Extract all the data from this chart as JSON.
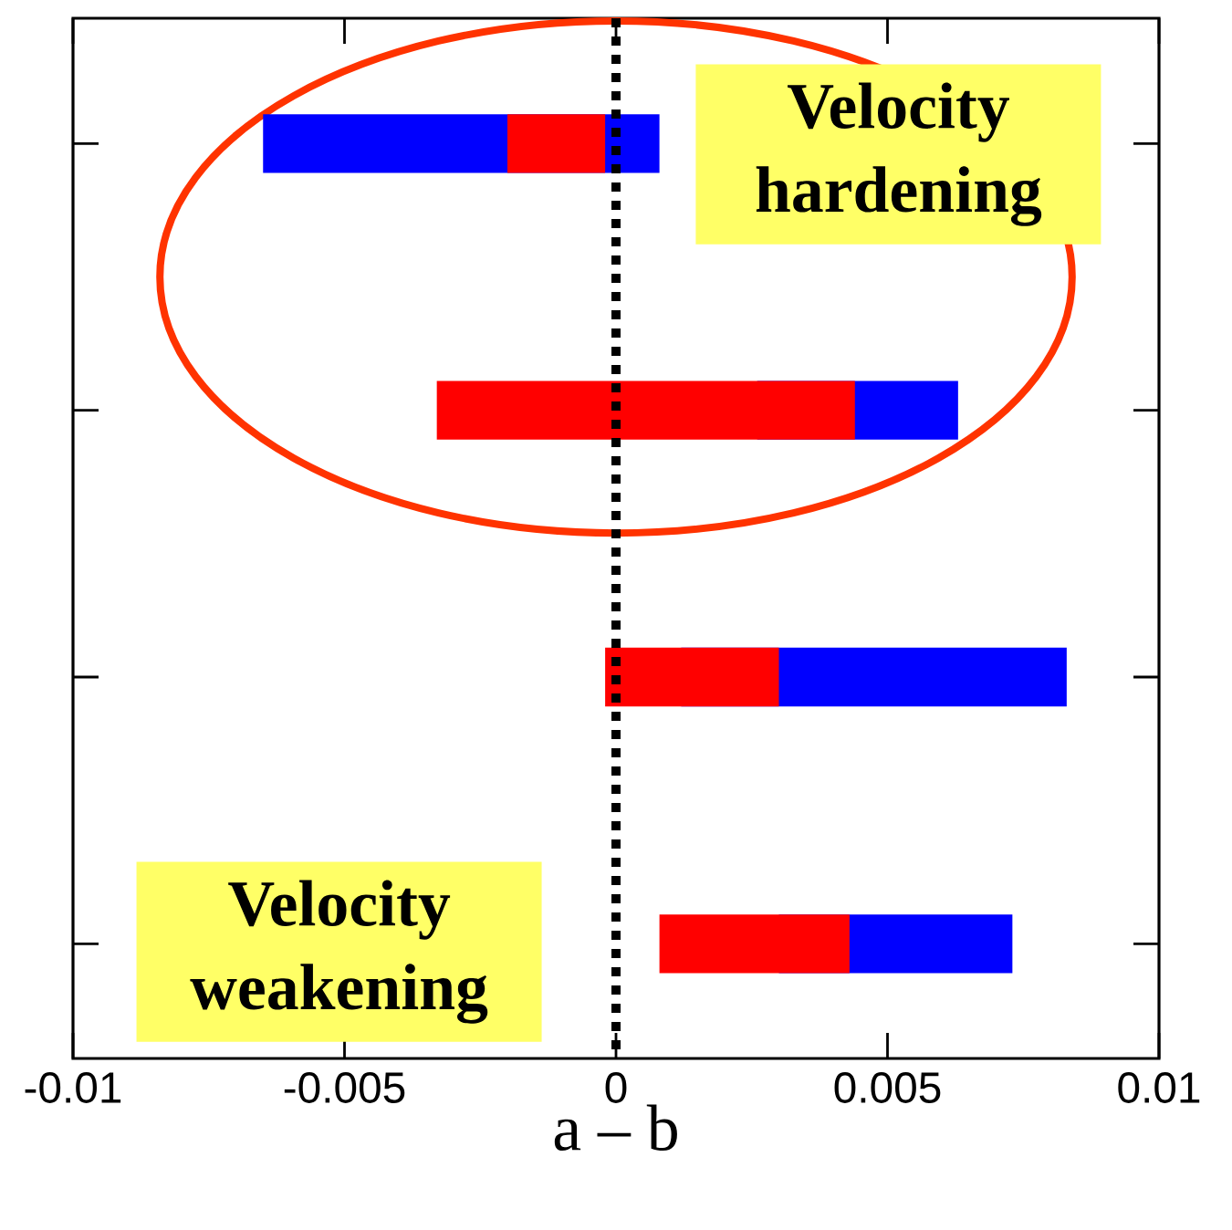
{
  "chart_data": {
    "type": "bar",
    "orientation": "horizontal",
    "categories": [
      null,
      null,
      null,
      null
    ],
    "series": [
      {
        "color": "#0000ff",
        "base": [
          -0.0065,
          0.0026,
          0.0012,
          0.003
        ],
        "values": [
          0.0073,
          0.0037,
          0.0071,
          0.0043
        ]
      },
      {
        "color": "#ff0000",
        "base": [
          -0.002,
          -0.0033,
          -0.0002,
          0.0008
        ],
        "values": [
          0.0018,
          0.0077,
          0.0032,
          0.0035
        ]
      }
    ],
    "xlim": [
      -0.01,
      0.01
    ],
    "xticks": [
      -0.01,
      -0.005,
      0,
      0.005,
      0.01
    ],
    "xlabel": "a – b",
    "tick_labels": "x",
    "ref_lines": [
      {
        "axis": "x",
        "value": 0,
        "color": "#000000",
        "line_style": "dotted"
      }
    ],
    "annotations": [
      "Velocity hardening",
      "Velocity weakening"
    ]
  }
}
